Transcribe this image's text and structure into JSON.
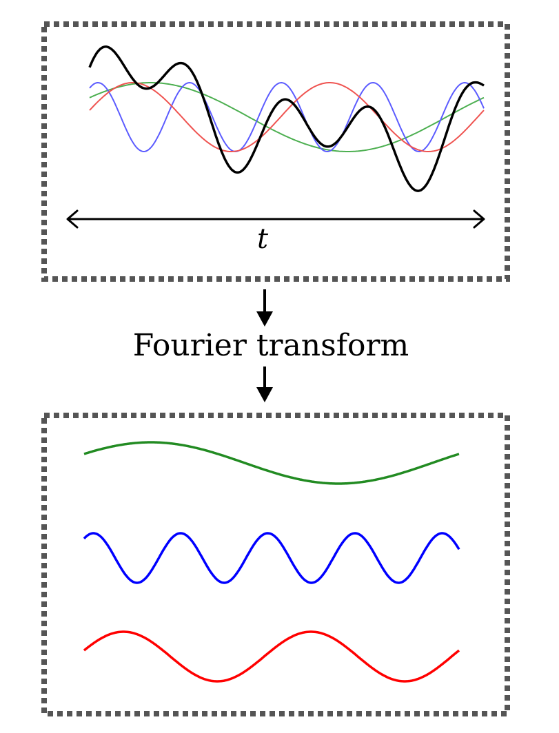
{
  "top_panel": {
    "axis_label": "t",
    "components": [
      {
        "name": "green",
        "color": "#4caf50",
        "cycles": 1.0,
        "phase": 0.0
      },
      {
        "name": "blue",
        "color": "#5b5bff",
        "cycles": 4.3,
        "phase": 0.0
      },
      {
        "name": "red",
        "color": "#ef5350",
        "cycles": 2.0,
        "phase": -0.6
      }
    ],
    "sum_color": "#000000"
  },
  "transform_label": "Fourier transform",
  "bottom_panel": {
    "components": [
      {
        "name": "green",
        "color": "#228b22",
        "cycles": 1.0,
        "phase": 0.0
      },
      {
        "name": "blue",
        "color": "#0000ff",
        "cycles": 4.3,
        "phase": 0.0
      },
      {
        "name": "red",
        "color": "#ff0000",
        "cycles": 2.0,
        "phase": -0.6
      }
    ]
  },
  "frame_color": "#555555",
  "arrow_color": "#000000"
}
